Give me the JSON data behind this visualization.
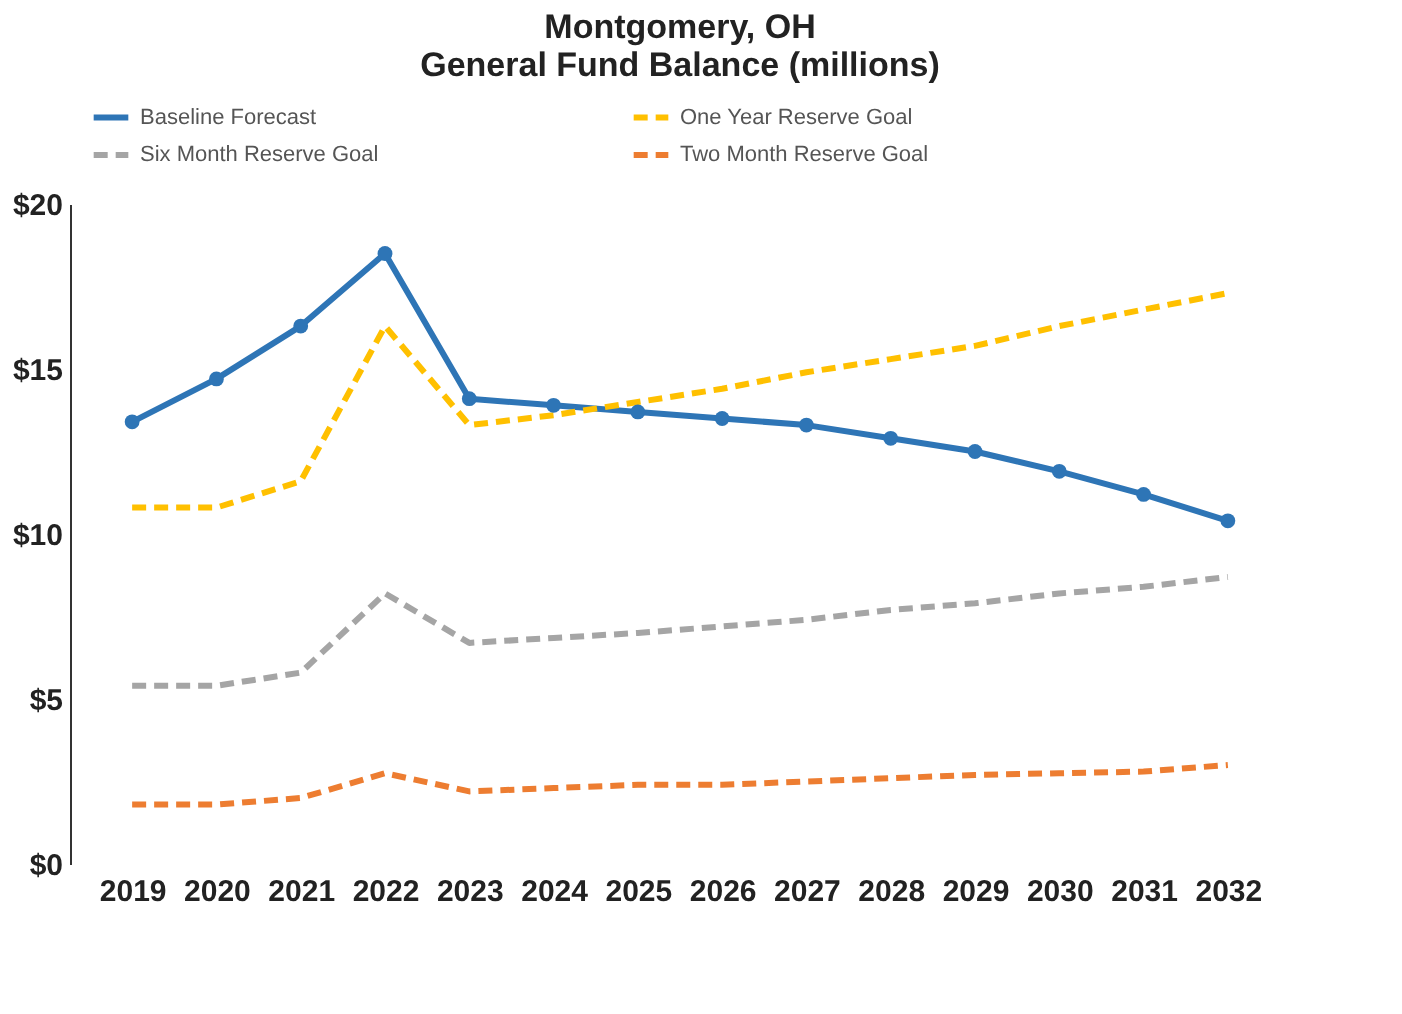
{
  "chart_data": {
    "type": "line",
    "title": [
      "Montgomery, OH",
      "General Fund Balance (millions)"
    ],
    "categories": [
      "2019",
      "2020",
      "2021",
      "2022",
      "2023",
      "2024",
      "2025",
      "2026",
      "2027",
      "2028",
      "2029",
      "2030",
      "2031",
      "2032"
    ],
    "ylim": [
      0,
      20
    ],
    "yticks": [
      {
        "value": 0,
        "label": "$0"
      },
      {
        "value": 5,
        "label": "$5"
      },
      {
        "value": 10,
        "label": "$10"
      },
      {
        "value": 15,
        "label": "$15"
      },
      {
        "value": 20,
        "label": "$20"
      }
    ],
    "grid": false,
    "legend": "top",
    "series": [
      {
        "name": "Baseline Forecast",
        "color": "#2e75b6",
        "marker": "circle",
        "line_style": "solid",
        "values": [
          13.4,
          14.7,
          16.3,
          18.5,
          14.1,
          13.9,
          13.7,
          13.5,
          13.3,
          12.9,
          12.5,
          11.9,
          11.2,
          10.4
        ]
      },
      {
        "name": "One Year Reserve Goal",
        "color": "#ffc000",
        "marker": "none",
        "line_style": "dashed",
        "values": [
          10.8,
          10.8,
          11.6,
          16.3,
          13.3,
          13.6,
          14.0,
          14.4,
          14.9,
          15.3,
          15.7,
          16.3,
          16.8,
          17.3
        ]
      },
      {
        "name": "Six Month Reserve Goal",
        "color": "#a5a5a5",
        "marker": "none",
        "line_style": "dashed",
        "values": [
          5.4,
          5.4,
          5.8,
          8.2,
          6.7,
          6.85,
          7.0,
          7.2,
          7.4,
          7.7,
          7.9,
          8.2,
          8.4,
          8.7
        ]
      },
      {
        "name": "Two Month Reserve Goal",
        "color": "#ed7d31",
        "marker": "none",
        "line_style": "dashed",
        "values": [
          1.8,
          1.8,
          2.0,
          2.75,
          2.2,
          2.3,
          2.4,
          2.4,
          2.5,
          2.6,
          2.7,
          2.75,
          2.8,
          3.0
        ]
      }
    ]
  }
}
